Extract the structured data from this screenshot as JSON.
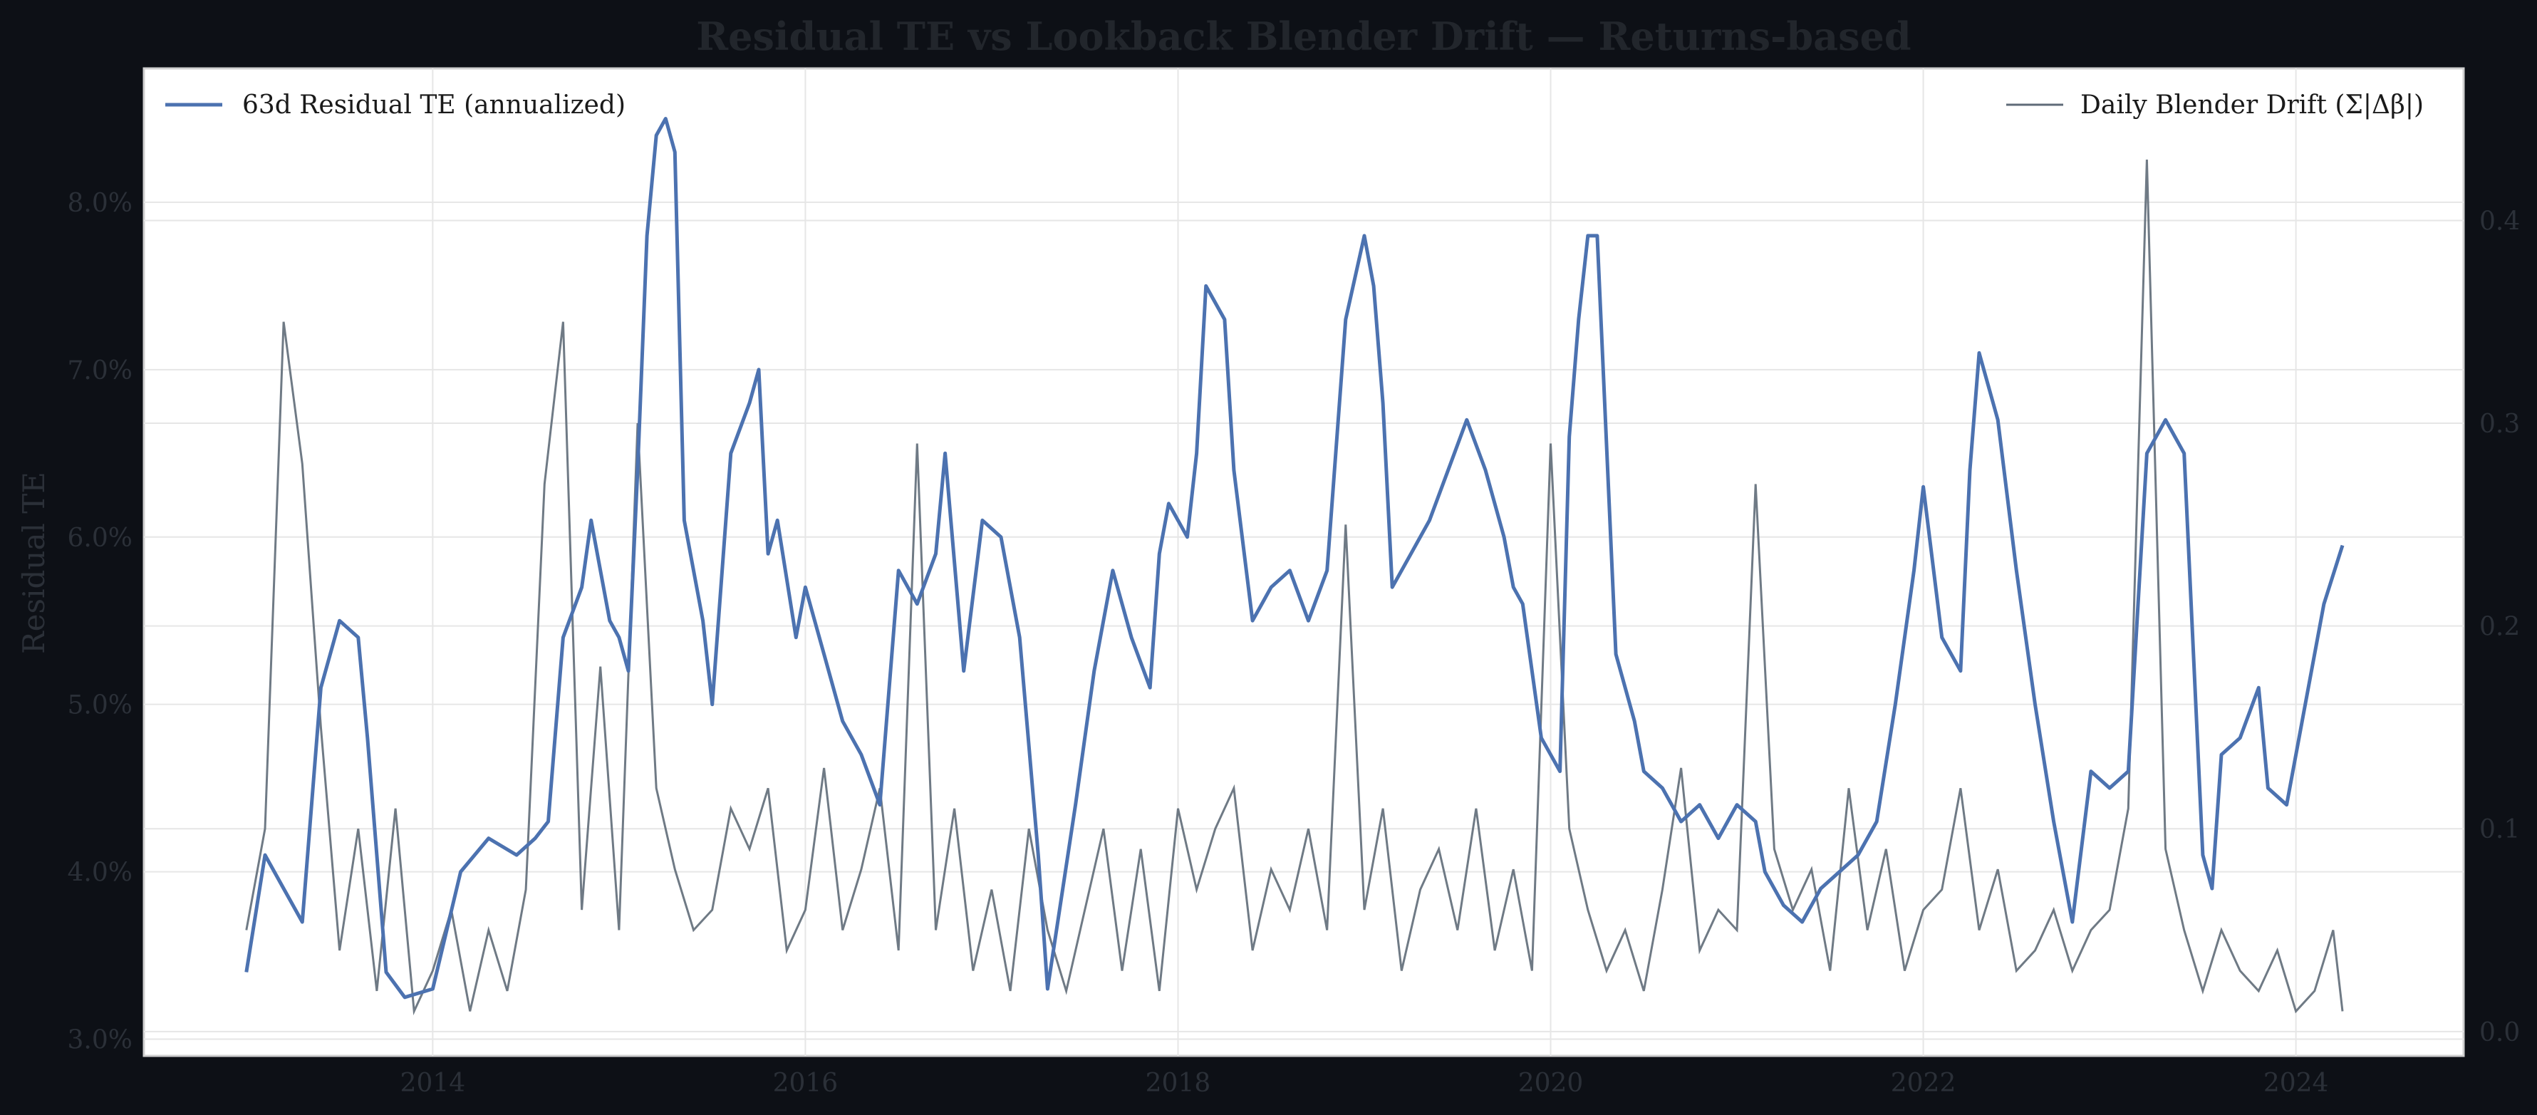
{
  "colors": {
    "background": "#0d1016",
    "plot_background": "#ffffff",
    "te_line": "#4c72b0",
    "drift_line": "#5f6b78",
    "grid": "#e6e6e6"
  },
  "chart_data": {
    "type": "line",
    "title": "Residual TE vs Lookback Blender Drift — Returns-based",
    "ylabel": "Residual TE",
    "y2label": "",
    "xlim": [
      2012.45,
      2024.9
    ],
    "ylim": [
      2.9,
      8.8
    ],
    "y2lim": [
      -0.012,
      0.475
    ],
    "x_ticks": [
      2014,
      2016,
      2018,
      2020,
      2022,
      2024
    ],
    "x_tick_labels": [
      "2014",
      "2016",
      "2018",
      "2020",
      "2022",
      "2024"
    ],
    "y_ticks": [
      3.0,
      4.0,
      5.0,
      6.0,
      7.0,
      8.0
    ],
    "y_tick_labels": [
      "3.0%",
      "4.0%",
      "5.0%",
      "6.0%",
      "7.0%",
      "8.0%"
    ],
    "y2_ticks": [
      0.0,
      0.1,
      0.2,
      0.3,
      0.4
    ],
    "y2_tick_labels": [
      "0.0",
      "0.1",
      "0.2",
      "0.3",
      "0.4"
    ],
    "grid": true,
    "legend_left": "top-left",
    "legend_right": "top-right",
    "series": [
      {
        "name": "63d Residual TE (annualized)",
        "axis": "left",
        "units": "percent",
        "x": [
          2013.0,
          2013.1,
          2013.2,
          2013.3,
          2013.4,
          2013.5,
          2013.6,
          2013.65,
          2013.75,
          2013.85,
          2014.0,
          2014.15,
          2014.3,
          2014.45,
          2014.55,
          2014.62,
          2014.7,
          2014.8,
          2014.85,
          2014.95,
          2015.0,
          2015.05,
          2015.1,
          2015.15,
          2015.2,
          2015.25,
          2015.3,
          2015.35,
          2015.45,
          2015.5,
          2015.6,
          2015.7,
          2015.75,
          2015.8,
          2015.85,
          2015.95,
          2016.0,
          2016.1,
          2016.2,
          2016.3,
          2016.4,
          2016.5,
          2016.55,
          2016.6,
          2016.7,
          2016.75,
          2016.85,
          2016.95,
          2017.05,
          2017.15,
          2017.25,
          2017.3,
          2017.45,
          2017.55,
          2017.65,
          2017.75,
          2017.85,
          2017.9,
          2017.95,
          2018.05,
          2018.1,
          2018.15,
          2018.25,
          2018.3,
          2018.4,
          2018.5,
          2018.6,
          2018.7,
          2018.8,
          2018.9,
          2019.0,
          2019.05,
          2019.1,
          2019.15,
          2019.25,
          2019.35,
          2019.45,
          2019.55,
          2019.65,
          2019.75,
          2019.8,
          2019.85,
          2019.95,
          2020.0,
          2020.05,
          2020.1,
          2020.15,
          2020.2,
          2020.25,
          2020.35,
          2020.45,
          2020.5,
          2020.6,
          2020.7,
          2020.8,
          2020.9,
          2021.0,
          2021.1,
          2021.15,
          2021.25,
          2021.35,
          2021.45,
          2021.55,
          2021.65,
          2021.75,
          2021.85,
          2021.95,
          2022.0,
          2022.1,
          2022.2,
          2022.25,
          2022.3,
          2022.4,
          2022.5,
          2022.6,
          2022.7,
          2022.8,
          2022.9,
          2023.0,
          2023.1,
          2023.2,
          2023.25,
          2023.3,
          2023.4,
          2023.5,
          2023.55,
          2023.6,
          2023.7,
          2023.8,
          2023.85,
          2023.95,
          2024.05,
          2024.15,
          2024.25
        ],
        "y": [
          3.4,
          4.1,
          3.9,
          3.7,
          5.1,
          5.5,
          5.4,
          4.8,
          3.4,
          3.25,
          3.3,
          4.0,
          4.2,
          4.1,
          4.2,
          4.3,
          5.4,
          5.7,
          6.1,
          5.5,
          5.4,
          5.2,
          6.4,
          7.8,
          8.4,
          8.5,
          8.3,
          6.1,
          5.5,
          5.0,
          6.5,
          6.8,
          7.0,
          5.9,
          6.1,
          5.4,
          5.7,
          5.3,
          4.9,
          4.7,
          4.4,
          5.8,
          5.7,
          5.6,
          5.9,
          6.5,
          5.2,
          6.1,
          6.0,
          5.4,
          4.1,
          3.3,
          4.4,
          5.2,
          5.8,
          5.4,
          5.1,
          5.9,
          6.2,
          6.0,
          6.5,
          7.5,
          7.3,
          6.4,
          5.5,
          5.7,
          5.8,
          5.5,
          5.8,
          7.3,
          7.8,
          7.5,
          6.8,
          5.7,
          5.9,
          6.1,
          6.4,
          6.7,
          6.4,
          6.0,
          5.7,
          5.6,
          4.8,
          4.7,
          4.6,
          6.6,
          7.3,
          7.8,
          7.8,
          5.3,
          4.9,
          4.6,
          4.5,
          4.3,
          4.4,
          4.2,
          4.4,
          4.3,
          4.0,
          3.8,
          3.7,
          3.9,
          4.0,
          4.1,
          4.3,
          5.0,
          5.8,
          6.3,
          5.4,
          5.2,
          6.4,
          7.1,
          6.7,
          5.8,
          5.0,
          4.3,
          3.7,
          4.6,
          4.5,
          4.6,
          6.5,
          6.6,
          6.7,
          6.5,
          4.1,
          3.9,
          4.7,
          4.8,
          5.1,
          4.5,
          4.4,
          5.0,
          5.6,
          5.95
        ]
      },
      {
        "name": "Daily Blender Drift (Σ|Δβ|)",
        "axis": "right",
        "units": "absolute",
        "x": [
          2013.0,
          2013.1,
          2013.2,
          2013.3,
          2013.4,
          2013.5,
          2013.6,
          2013.7,
          2013.8,
          2013.9,
          2014.0,
          2014.1,
          2014.2,
          2014.3,
          2014.4,
          2014.5,
          2014.6,
          2014.7,
          2014.8,
          2014.9,
          2015.0,
          2015.1,
          2015.2,
          2015.3,
          2015.4,
          2015.5,
          2015.6,
          2015.7,
          2015.8,
          2015.9,
          2016.0,
          2016.1,
          2016.2,
          2016.3,
          2016.4,
          2016.5,
          2016.6,
          2016.7,
          2016.8,
          2016.9,
          2017.0,
          2017.1,
          2017.2,
          2017.3,
          2017.4,
          2017.5,
          2017.6,
          2017.7,
          2017.8,
          2017.9,
          2018.0,
          2018.1,
          2018.2,
          2018.3,
          2018.4,
          2018.5,
          2018.6,
          2018.7,
          2018.8,
          2018.9,
          2019.0,
          2019.1,
          2019.2,
          2019.3,
          2019.4,
          2019.5,
          2019.6,
          2019.7,
          2019.8,
          2019.9,
          2020.0,
          2020.1,
          2020.2,
          2020.3,
          2020.4,
          2020.5,
          2020.6,
          2020.7,
          2020.8,
          2020.9,
          2021.0,
          2021.1,
          2021.2,
          2021.3,
          2021.4,
          2021.5,
          2021.6,
          2021.7,
          2021.8,
          2021.9,
          2022.0,
          2022.1,
          2022.2,
          2022.3,
          2022.4,
          2022.5,
          2022.6,
          2022.7,
          2022.8,
          2022.9,
          2023.0,
          2023.1,
          2023.2,
          2023.3,
          2023.4,
          2023.5,
          2023.6,
          2023.7,
          2023.8,
          2023.9,
          2024.0,
          2024.1,
          2024.2,
          2024.25
        ],
        "y": [
          0.05,
          0.1,
          0.35,
          0.28,
          0.15,
          0.04,
          0.1,
          0.02,
          0.11,
          0.01,
          0.03,
          0.06,
          0.01,
          0.05,
          0.02,
          0.07,
          0.27,
          0.35,
          0.06,
          0.18,
          0.05,
          0.3,
          0.12,
          0.08,
          0.05,
          0.06,
          0.11,
          0.09,
          0.12,
          0.04,
          0.06,
          0.13,
          0.05,
          0.08,
          0.12,
          0.04,
          0.29,
          0.05,
          0.11,
          0.03,
          0.07,
          0.02,
          0.1,
          0.05,
          0.02,
          0.06,
          0.1,
          0.03,
          0.09,
          0.02,
          0.11,
          0.07,
          0.1,
          0.12,
          0.04,
          0.08,
          0.06,
          0.1,
          0.05,
          0.25,
          0.06,
          0.11,
          0.03,
          0.07,
          0.09,
          0.05,
          0.11,
          0.04,
          0.08,
          0.03,
          0.29,
          0.1,
          0.06,
          0.03,
          0.05,
          0.02,
          0.07,
          0.13,
          0.04,
          0.06,
          0.05,
          0.27,
          0.09,
          0.06,
          0.08,
          0.03,
          0.12,
          0.05,
          0.09,
          0.03,
          0.06,
          0.07,
          0.12,
          0.05,
          0.08,
          0.03,
          0.04,
          0.06,
          0.03,
          0.05,
          0.06,
          0.11,
          0.43,
          0.09,
          0.05,
          0.02,
          0.05,
          0.03,
          0.02,
          0.04,
          0.01,
          0.02,
          0.05,
          0.01
        ]
      }
    ]
  }
}
